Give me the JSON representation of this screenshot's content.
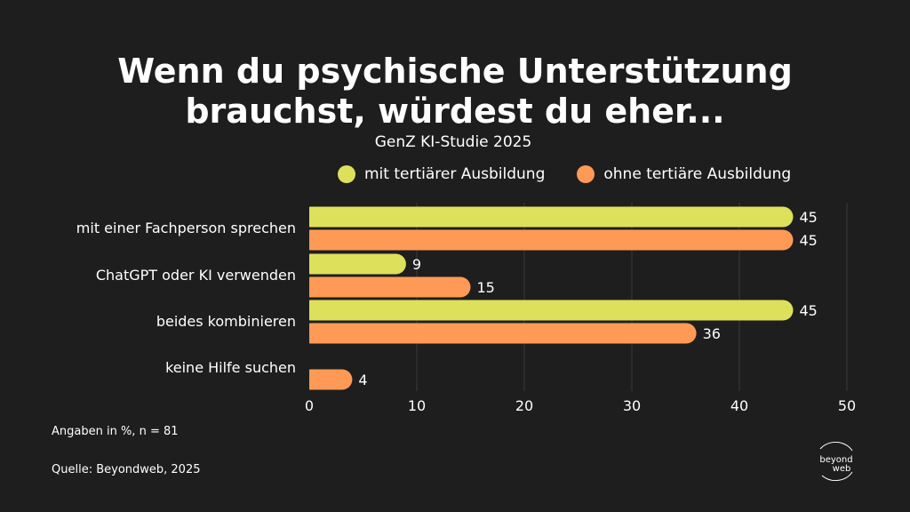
{
  "title": {
    "line1": "Wenn du psychische Unterstützung",
    "line2": "brauchst, würdest du eher..."
  },
  "subtitle": "GenZ KI-Studie 2025",
  "legend": [
    {
      "label": "mit tertiärer Ausbildung",
      "color": "#dde05a"
    },
    {
      "label": "ohne tertiäre Ausbildung",
      "color": "#ff9a56"
    }
  ],
  "footer": {
    "note": "Angaben in %, n = 81",
    "source": "Quelle: Beyondweb, 2025"
  },
  "logo": {
    "line1": "beyond",
    "line2": "web"
  },
  "chart_data": {
    "type": "bar",
    "orientation": "horizontal",
    "categories": [
      "mit einer Fachperson sprechen",
      "ChatGPT oder KI verwenden",
      "beides kombinieren",
      "keine Hilfe suchen"
    ],
    "series": [
      {
        "name": "mit tertiärer Ausbildung",
        "values": [
          45,
          9,
          45,
          null
        ],
        "color": "#dde05a"
      },
      {
        "name": "ohne tertiäre Ausbildung",
        "values": [
          45,
          15,
          36,
          4
        ],
        "color": "#ff9a56"
      }
    ],
    "xlim": [
      0,
      50
    ],
    "xticks": [
      0,
      10,
      20,
      30,
      40,
      50
    ],
    "grid": true,
    "legend_position": "top"
  }
}
